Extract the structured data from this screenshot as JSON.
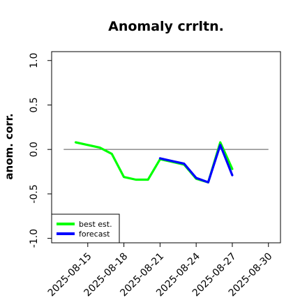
{
  "chart_data": {
    "type": "line",
    "title": "Anomaly crrltn.",
    "xlabel": "",
    "ylabel": "anom. corr.",
    "ylim": [
      -1.05,
      1.1
    ],
    "xlim": [
      "2025-08-12",
      "2025-08-31"
    ],
    "yticks": [
      -1.0,
      -0.5,
      0.0,
      0.5,
      1.0
    ],
    "ytick_labels": [
      "-1.0",
      "-0.5",
      "0.0",
      "0.5",
      "1.0"
    ],
    "xticks": [
      "2025-08-15",
      "2025-08-18",
      "2025-08-21",
      "2025-08-24",
      "2025-08-27",
      "2025-08-30"
    ],
    "xtick_labels": [
      "2025-08-15",
      "2025-08-18",
      "2025-08-21",
      "2025-08-24",
      "2025-08-27",
      "2025-08-30"
    ],
    "highlight_tick": "2025-08-21",
    "highlight_color": "#228B22",
    "reference_line": 0.0,
    "grid": false,
    "legend_position": "bottom-left",
    "series": [
      {
        "name": "best est.",
        "color": "#00ff00",
        "points": [
          [
            "2025-08-14",
            0.08
          ],
          [
            "2025-08-15",
            0.05
          ],
          [
            "2025-08-16",
            0.02
          ],
          [
            "2025-08-17",
            -0.05
          ],
          [
            "2025-08-18",
            -0.31
          ],
          [
            "2025-08-19",
            -0.34
          ],
          [
            "2025-08-20",
            -0.34
          ],
          [
            "2025-08-21",
            -0.11
          ],
          [
            "2025-08-22",
            -0.14
          ],
          [
            "2025-08-23",
            -0.17
          ],
          [
            "2025-08-24",
            -0.33
          ],
          [
            "2025-08-25",
            -0.37
          ],
          [
            "2025-08-26",
            0.08
          ],
          [
            "2025-08-27",
            -0.22
          ]
        ]
      },
      {
        "name": "forecast",
        "color": "#0000ff",
        "points": [
          [
            "2025-08-21",
            -0.1
          ],
          [
            "2025-08-22",
            -0.13
          ],
          [
            "2025-08-23",
            -0.16
          ],
          [
            "2025-08-24",
            -0.32
          ],
          [
            "2025-08-25",
            -0.37
          ],
          [
            "2025-08-26",
            0.05
          ],
          [
            "2025-08-27",
            -0.29
          ]
        ]
      }
    ]
  }
}
